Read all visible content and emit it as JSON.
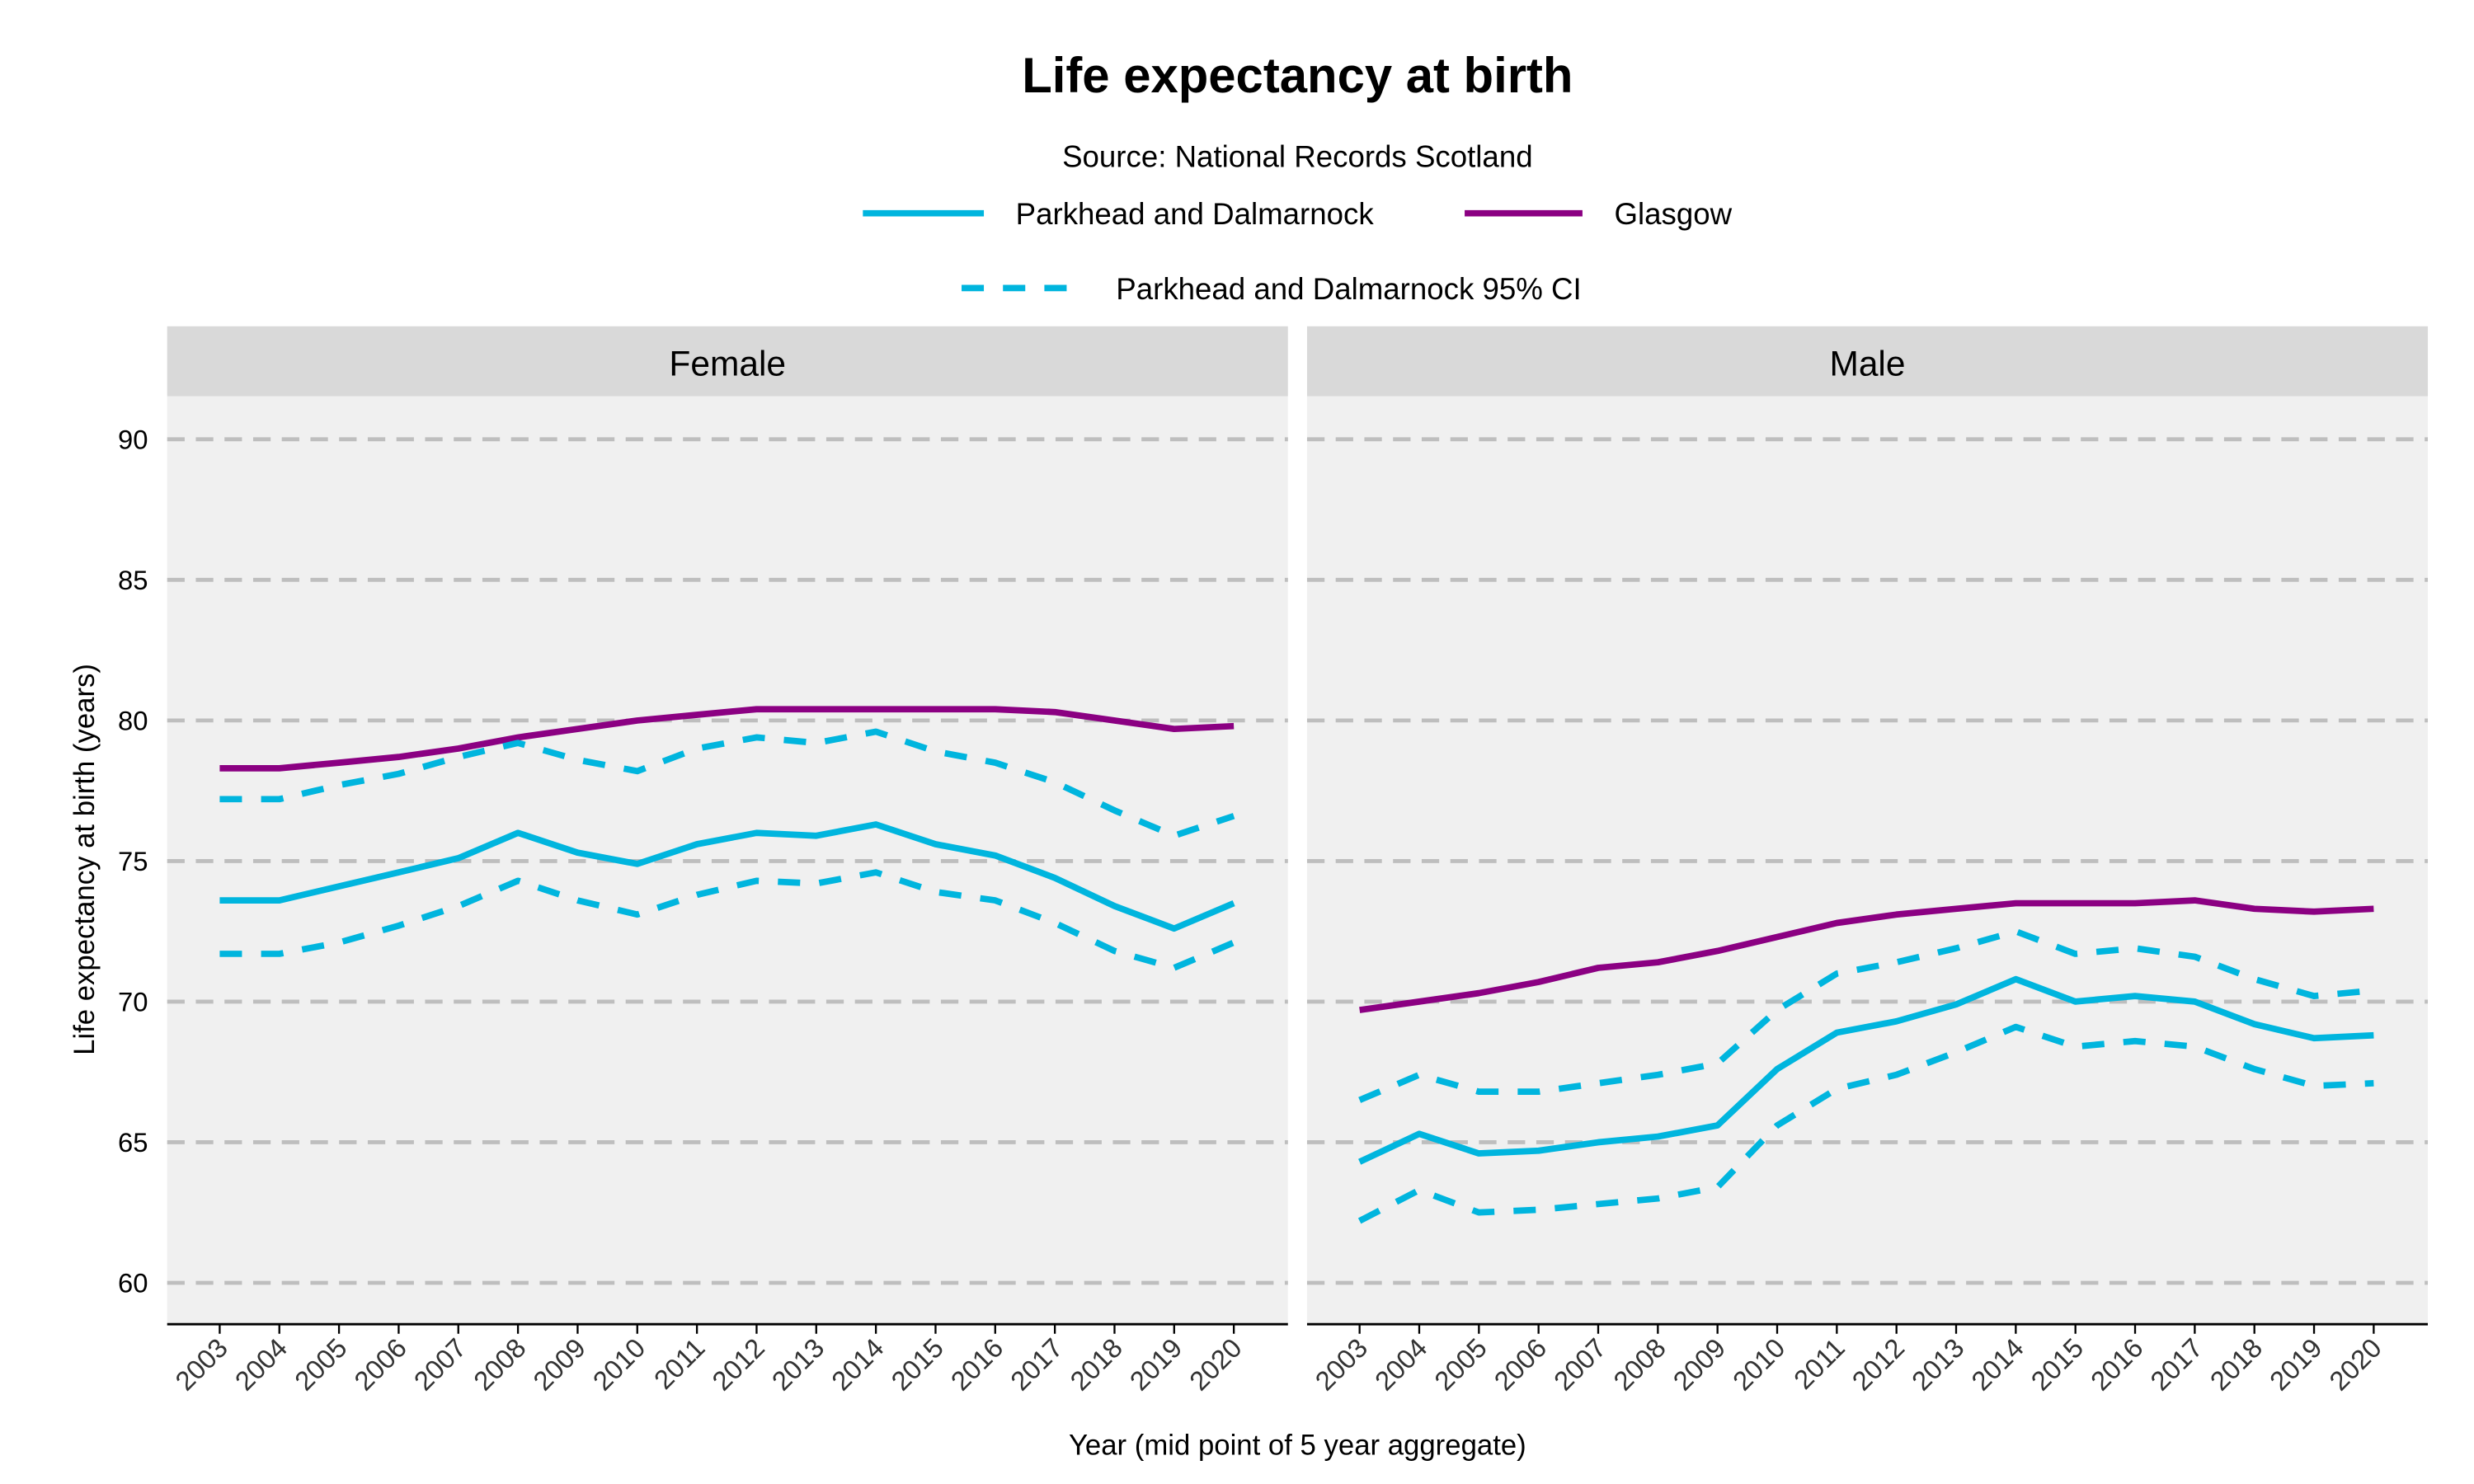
{
  "chart_data": {
    "type": "line",
    "title": "Life expectancy at birth",
    "subtitle": "Source: National Records Scotland",
    "xlabel": "Year (mid point of 5 year aggregate)",
    "ylabel": "Life expectancy at birth (years)",
    "ylim": [
      58.5,
      93.5
    ],
    "yticks": [
      60,
      65,
      70,
      75,
      80,
      85,
      90
    ],
    "grid": "horizontal dashed",
    "legend_position": "top",
    "legend": [
      {
        "label": "Parkhead and Dalmarnock",
        "color": "#00B5DE",
        "style": "solid"
      },
      {
        "label": "Glasgow",
        "color": "#8B0082",
        "style": "solid"
      },
      {
        "label": "Parkhead and Dalmarnock 95% CI",
        "color": "#00B5DE",
        "style": "dashed"
      }
    ],
    "x": [
      "2003",
      "2004",
      "2005",
      "2006",
      "2007",
      "2008",
      "2009",
      "2010",
      "2011",
      "2012",
      "2013",
      "2014",
      "2015",
      "2016",
      "2017",
      "2018",
      "2019",
      "2020"
    ],
    "panels": [
      {
        "label": "Female",
        "series": [
          {
            "name": "Glasgow",
            "values": [
              78.3,
              78.3,
              78.5,
              78.7,
              79.0,
              79.4,
              79.7,
              80.0,
              80.2,
              80.4,
              80.4,
              80.4,
              80.4,
              80.4,
              80.3,
              80.0,
              79.7,
              79.8
            ]
          },
          {
            "name": "Parkhead and Dalmarnock 95% CI upper",
            "values": [
              77.2,
              77.2,
              77.7,
              78.1,
              78.7,
              79.2,
              78.6,
              78.2,
              79.0,
              79.4,
              79.2,
              79.6,
              78.9,
              78.5,
              77.8,
              76.8,
              75.9,
              76.6
            ]
          },
          {
            "name": "Parkhead and Dalmarnock",
            "values": [
              73.6,
              73.6,
              74.1,
              74.6,
              75.1,
              76.0,
              75.3,
              74.9,
              75.6,
              76.0,
              75.9,
              76.3,
              75.6,
              75.2,
              74.4,
              73.4,
              72.6,
              73.5
            ]
          },
          {
            "name": "Parkhead and Dalmarnock 95% CI lower",
            "values": [
              71.7,
              71.7,
              72.1,
              72.7,
              73.4,
              74.3,
              73.6,
              73.1,
              73.8,
              74.3,
              74.2,
              74.6,
              73.9,
              73.6,
              72.8,
              71.8,
              71.2,
              72.1
            ]
          }
        ]
      },
      {
        "label": "Male",
        "series": [
          {
            "name": "Glasgow",
            "values": [
              69.7,
              70.0,
              70.3,
              70.7,
              71.2,
              71.4,
              71.8,
              72.3,
              72.8,
              73.1,
              73.3,
              73.5,
              73.5,
              73.5,
              73.6,
              73.3,
              73.2,
              73.3
            ]
          },
          {
            "name": "Parkhead and Dalmarnock 95% CI upper",
            "values": [
              66.5,
              67.4,
              66.8,
              66.8,
              67.1,
              67.4,
              67.8,
              69.7,
              71.0,
              71.4,
              71.9,
              72.5,
              71.7,
              71.9,
              71.6,
              70.8,
              70.2,
              70.4
            ]
          },
          {
            "name": "Parkhead and Dalmarnock",
            "values": [
              64.3,
              65.3,
              64.6,
              64.7,
              65.0,
              65.2,
              65.6,
              67.6,
              68.9,
              69.3,
              69.9,
              70.8,
              70.0,
              70.2,
              70.0,
              69.2,
              68.7,
              68.8
            ]
          },
          {
            "name": "Parkhead and Dalmarnock 95% CI lower",
            "values": [
              62.2,
              63.3,
              62.5,
              62.6,
              62.8,
              63.0,
              63.4,
              65.6,
              66.9,
              67.4,
              68.2,
              69.1,
              68.4,
              68.6,
              68.4,
              67.6,
              67.0,
              67.1
            ]
          }
        ]
      }
    ]
  }
}
